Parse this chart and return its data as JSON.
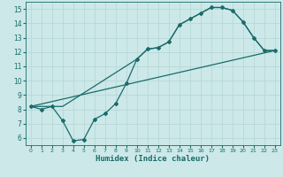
{
  "xlabel": "Humidex (Indice chaleur)",
  "bg_color": "#cce8e8",
  "line_color": "#1a6b6b",
  "grid_color": "#aacccc",
  "xlim": [
    -0.5,
    23.5
  ],
  "ylim": [
    5.5,
    15.5
  ],
  "xticks": [
    0,
    1,
    2,
    3,
    4,
    5,
    6,
    7,
    8,
    9,
    10,
    11,
    12,
    13,
    14,
    15,
    16,
    17,
    18,
    19,
    20,
    21,
    22,
    23
  ],
  "yticks": [
    6,
    7,
    8,
    9,
    10,
    11,
    12,
    13,
    14,
    15
  ],
  "line1_x": [
    0,
    1,
    2,
    3,
    4,
    5,
    6,
    7,
    8,
    9,
    10,
    11,
    12,
    13,
    14,
    15,
    16,
    17,
    18,
    19,
    20,
    21,
    22,
    23
  ],
  "line1_y": [
    8.2,
    8.0,
    8.2,
    7.2,
    5.8,
    5.9,
    7.3,
    7.7,
    8.4,
    9.8,
    11.5,
    12.2,
    12.3,
    12.7,
    13.9,
    14.3,
    14.7,
    15.1,
    15.1,
    14.9,
    14.1,
    13.0,
    12.1,
    12.1
  ],
  "line2_x": [
    0,
    3,
    10,
    11,
    12,
    13,
    14,
    15,
    16,
    17,
    18,
    19,
    20,
    21,
    22,
    23
  ],
  "line2_y": [
    8.2,
    8.2,
    11.5,
    12.2,
    12.3,
    12.7,
    13.9,
    14.3,
    14.7,
    15.1,
    15.1,
    14.9,
    14.1,
    13.0,
    12.1,
    12.1
  ],
  "line3_x": [
    0,
    23
  ],
  "line3_y": [
    8.2,
    12.1
  ]
}
